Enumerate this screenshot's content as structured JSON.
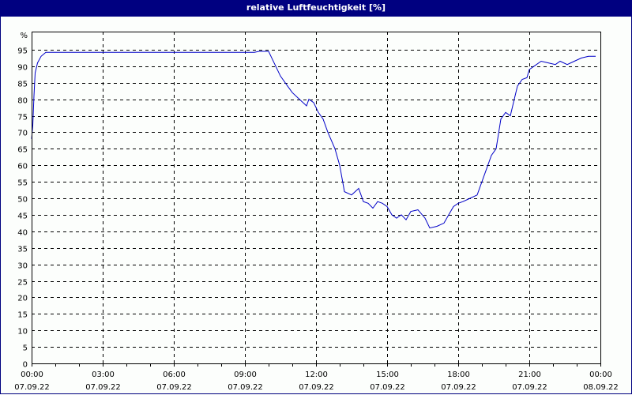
{
  "header": {
    "title": "relative Luftfeuchtigkeit [%]"
  },
  "colors": {
    "title_bg": "#000080",
    "line": "#0000c8",
    "grid": "#000000",
    "background": "#fcfefc"
  },
  "chart_data": {
    "type": "line",
    "title": "relative Luftfeuchtigkeit [%]",
    "xlabel": "",
    "ylabel": "%",
    "ylim": [
      0,
      100
    ],
    "xlim_hours": [
      0,
      24
    ],
    "grid": true,
    "y_ticks": [
      0,
      5,
      10,
      15,
      20,
      25,
      30,
      35,
      40,
      45,
      50,
      55,
      60,
      65,
      70,
      75,
      80,
      85,
      90,
      95
    ],
    "y_unit_label": "%",
    "x_ticks": [
      {
        "time": "00:00",
        "date": "07.09.22"
      },
      {
        "time": "03:00",
        "date": "07.09.22"
      },
      {
        "time": "06:00",
        "date": "07.09.22"
      },
      {
        "time": "09:00",
        "date": "07.09.22"
      },
      {
        "time": "12:00",
        "date": "07.09.22"
      },
      {
        "time": "15:00",
        "date": "07.09.22"
      },
      {
        "time": "18:00",
        "date": "07.09.22"
      },
      {
        "time": "21:00",
        "date": "07.09.22"
      },
      {
        "time": "00:00",
        "date": "08.09.22"
      }
    ],
    "series": [
      {
        "name": "relative Luftfeuchtigkeit",
        "x_hours": [
          0,
          0.05,
          0.1,
          0.15,
          0.25,
          0.4,
          0.6,
          3,
          6,
          9,
          9.4,
          9.6,
          10,
          10.1,
          10.3,
          10.5,
          10.8,
          11,
          11.3,
          11.6,
          11.7,
          11.9,
          12.1,
          12.3,
          12.5,
          12.8,
          13.0,
          13.2,
          13.5,
          13.8,
          14.0,
          14.2,
          14.4,
          14.6,
          14.8,
          15.0,
          15.2,
          15.4,
          15.6,
          15.8,
          16.0,
          16.3,
          16.6,
          16.8,
          17.1,
          17.4,
          17.6,
          17.8,
          18.0,
          18.2,
          18.5,
          18.8,
          19.0,
          19.2,
          19.4,
          19.6,
          19.8,
          20.0,
          20.2,
          20.4,
          20.5,
          20.7,
          20.9,
          21.0,
          21.2,
          21.5,
          21.8,
          22.1,
          22.3,
          22.6,
          22.9,
          23.2,
          23.5,
          23.8
        ],
        "values": [
          68,
          72,
          81,
          88,
          91,
          93,
          94.2,
          94.2,
          94.2,
          94.2,
          94.2,
          94.5,
          94.5,
          93,
          90,
          87,
          84,
          82,
          80,
          78,
          80,
          79,
          76,
          74,
          70,
          65,
          60,
          52,
          51,
          53,
          49,
          48.5,
          47,
          49,
          48.5,
          47.5,
          45,
          44,
          45,
          43.5,
          46,
          46.5,
          44,
          41,
          41.5,
          42.5,
          45,
          47.5,
          48.5,
          49,
          50,
          51,
          55,
          59,
          63,
          65,
          74,
          76,
          75,
          81,
          84,
          86,
          86.5,
          89,
          90,
          91.5,
          91,
          90.5,
          91.5,
          90.5,
          91.5,
          92.5,
          93,
          93
        ]
      }
    ]
  }
}
